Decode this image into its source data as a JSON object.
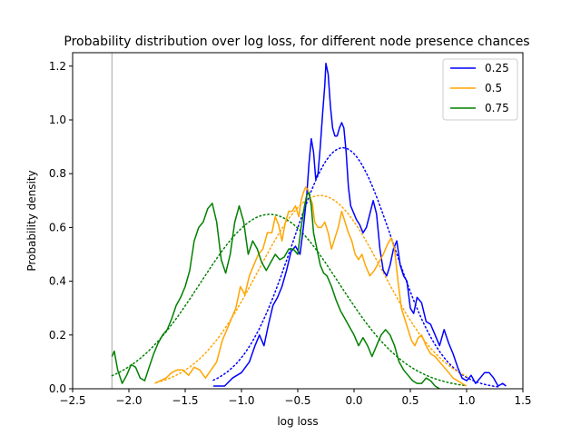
{
  "chart_data": {
    "type": "line",
    "title": "Probability distribution over log loss, for different node presence chances",
    "xlabel": "log loss",
    "ylabel": "Probability density",
    "xlim": [
      -2.5,
      1.5
    ],
    "ylim": [
      0,
      1.25
    ],
    "xticks": [
      "-2.5",
      "-2.0",
      "-1.5",
      "-1.0",
      "-0.5",
      "0.0",
      "0.5",
      "1.0",
      "1.5"
    ],
    "yticks": [
      "0.0",
      "0.2",
      "0.4",
      "0.6",
      "0.8",
      "1.0",
      "1.2"
    ],
    "grid": false,
    "legend_position": "top-right",
    "vline_x": -2.15,
    "series": [
      {
        "name": "0.25",
        "color": "#0000ff",
        "kde": [
          [
            -1.25,
            0.01
          ],
          [
            -1.15,
            0.01
          ],
          [
            -1.08,
            0.04
          ],
          [
            -1.0,
            0.06
          ],
          [
            -0.93,
            0.1
          ],
          [
            -0.88,
            0.16
          ],
          [
            -0.84,
            0.2
          ],
          [
            -0.8,
            0.16
          ],
          [
            -0.76,
            0.24
          ],
          [
            -0.72,
            0.31
          ],
          [
            -0.68,
            0.34
          ],
          [
            -0.64,
            0.38
          ],
          [
            -0.6,
            0.44
          ],
          [
            -0.56,
            0.51
          ],
          [
            -0.52,
            0.53
          ],
          [
            -0.48,
            0.5
          ],
          [
            -0.45,
            0.6
          ],
          [
            -0.42,
            0.72
          ],
          [
            -0.4,
            0.84
          ],
          [
            -0.38,
            0.93
          ],
          [
            -0.36,
            0.88
          ],
          [
            -0.34,
            0.78
          ],
          [
            -0.32,
            0.8
          ],
          [
            -0.3,
            0.9
          ],
          [
            -0.28,
            1.02
          ],
          [
            -0.26,
            1.13
          ],
          [
            -0.25,
            1.21
          ],
          [
            -0.23,
            1.17
          ],
          [
            -0.21,
            1.05
          ],
          [
            -0.19,
            0.97
          ],
          [
            -0.17,
            0.94
          ],
          [
            -0.15,
            0.94
          ],
          [
            -0.13,
            0.97
          ],
          [
            -0.11,
            0.99
          ],
          [
            -0.09,
            0.97
          ],
          [
            -0.07,
            0.88
          ],
          [
            -0.05,
            0.75
          ],
          [
            -0.03,
            0.68
          ],
          [
            -0.01,
            0.66
          ],
          [
            0.02,
            0.63
          ],
          [
            0.05,
            0.61
          ],
          [
            0.08,
            0.58
          ],
          [
            0.11,
            0.6
          ],
          [
            0.14,
            0.65
          ],
          [
            0.17,
            0.7
          ],
          [
            0.2,
            0.65
          ],
          [
            0.23,
            0.52
          ],
          [
            0.26,
            0.44
          ],
          [
            0.29,
            0.42
          ],
          [
            0.32,
            0.46
          ],
          [
            0.35,
            0.52
          ],
          [
            0.38,
            0.55
          ],
          [
            0.41,
            0.46
          ],
          [
            0.44,
            0.42
          ],
          [
            0.47,
            0.4
          ],
          [
            0.5,
            0.3
          ],
          [
            0.53,
            0.28
          ],
          [
            0.56,
            0.34
          ],
          [
            0.6,
            0.32
          ],
          [
            0.64,
            0.25
          ],
          [
            0.68,
            0.24
          ],
          [
            0.72,
            0.2
          ],
          [
            0.76,
            0.16
          ],
          [
            0.8,
            0.22
          ],
          [
            0.84,
            0.17
          ],
          [
            0.88,
            0.13
          ],
          [
            0.92,
            0.08
          ],
          [
            0.96,
            0.04
          ],
          [
            1.0,
            0.03
          ],
          [
            1.04,
            0.05
          ],
          [
            1.08,
            0.02
          ],
          [
            1.12,
            0.04
          ],
          [
            1.16,
            0.06
          ],
          [
            1.2,
            0.06
          ],
          [
            1.24,
            0.04
          ],
          [
            1.28,
            0.01
          ],
          [
            1.32,
            0.02
          ],
          [
            1.35,
            0.01
          ]
        ],
        "normal": {
          "mean": -0.1,
          "std": 0.445,
          "from": -1.25,
          "to": 1.3
        }
      },
      {
        "name": "0.5",
        "color": "#ffa500",
        "kde": [
          [
            -1.77,
            0.02
          ],
          [
            -1.72,
            0.03
          ],
          [
            -1.67,
            0.04
          ],
          [
            -1.62,
            0.06
          ],
          [
            -1.57,
            0.07
          ],
          [
            -1.52,
            0.07
          ],
          [
            -1.47,
            0.05
          ],
          [
            -1.42,
            0.08
          ],
          [
            -1.37,
            0.07
          ],
          [
            -1.32,
            0.04
          ],
          [
            -1.27,
            0.07
          ],
          [
            -1.22,
            0.1
          ],
          [
            -1.17,
            0.18
          ],
          [
            -1.13,
            0.22
          ],
          [
            -1.09,
            0.26
          ],
          [
            -1.05,
            0.3
          ],
          [
            -1.01,
            0.38
          ],
          [
            -0.97,
            0.35
          ],
          [
            -0.93,
            0.42
          ],
          [
            -0.89,
            0.46
          ],
          [
            -0.85,
            0.5
          ],
          [
            -0.81,
            0.52
          ],
          [
            -0.77,
            0.58
          ],
          [
            -0.73,
            0.58
          ],
          [
            -0.7,
            0.64
          ],
          [
            -0.67,
            0.61
          ],
          [
            -0.64,
            0.55
          ],
          [
            -0.61,
            0.62
          ],
          [
            -0.58,
            0.66
          ],
          [
            -0.55,
            0.66
          ],
          [
            -0.52,
            0.68
          ],
          [
            -0.49,
            0.64
          ],
          [
            -0.47,
            0.7
          ],
          [
            -0.45,
            0.73
          ],
          [
            -0.43,
            0.75
          ],
          [
            -0.41,
            0.74
          ],
          [
            -0.39,
            0.71
          ],
          [
            -0.37,
            0.69
          ],
          [
            -0.35,
            0.62
          ],
          [
            -0.32,
            0.6
          ],
          [
            -0.29,
            0.6
          ],
          [
            -0.26,
            0.62
          ],
          [
            -0.23,
            0.58
          ],
          [
            -0.2,
            0.52
          ],
          [
            -0.17,
            0.56
          ],
          [
            -0.14,
            0.6
          ],
          [
            -0.11,
            0.66
          ],
          [
            -0.08,
            0.62
          ],
          [
            -0.05,
            0.58
          ],
          [
            -0.02,
            0.55
          ],
          [
            0.01,
            0.5
          ],
          [
            0.04,
            0.48
          ],
          [
            0.07,
            0.5
          ],
          [
            0.1,
            0.46
          ],
          [
            0.14,
            0.42
          ],
          [
            0.18,
            0.44
          ],
          [
            0.22,
            0.47
          ],
          [
            0.26,
            0.5
          ],
          [
            0.3,
            0.54
          ],
          [
            0.33,
            0.56
          ],
          [
            0.36,
            0.52
          ],
          [
            0.39,
            0.4
          ],
          [
            0.42,
            0.3
          ],
          [
            0.45,
            0.26
          ],
          [
            0.48,
            0.22
          ],
          [
            0.51,
            0.18
          ],
          [
            0.54,
            0.16
          ],
          [
            0.57,
            0.19
          ],
          [
            0.6,
            0.2
          ],
          [
            0.64,
            0.16
          ],
          [
            0.68,
            0.13
          ],
          [
            0.72,
            0.12
          ],
          [
            0.76,
            0.1
          ],
          [
            0.8,
            0.08
          ],
          [
            0.84,
            0.06
          ],
          [
            0.88,
            0.04
          ],
          [
            0.92,
            0.03
          ],
          [
            0.96,
            0.02
          ],
          [
            1.0,
            0.01
          ]
        ],
        "normal": {
          "mean": -0.3,
          "std": 0.555,
          "from": -1.75,
          "to": 1.0
        }
      },
      {
        "name": "0.75",
        "color": "#008000",
        "kde": [
          [
            -2.15,
            0.12
          ],
          [
            -2.13,
            0.14
          ],
          [
            -2.1,
            0.07
          ],
          [
            -2.06,
            0.02
          ],
          [
            -2.02,
            0.05
          ],
          [
            -1.98,
            0.09
          ],
          [
            -1.94,
            0.08
          ],
          [
            -1.9,
            0.04
          ],
          [
            -1.86,
            0.03
          ],
          [
            -1.82,
            0.08
          ],
          [
            -1.78,
            0.13
          ],
          [
            -1.74,
            0.17
          ],
          [
            -1.7,
            0.2
          ],
          [
            -1.66,
            0.22
          ],
          [
            -1.62,
            0.26
          ],
          [
            -1.58,
            0.31
          ],
          [
            -1.54,
            0.34
          ],
          [
            -1.5,
            0.38
          ],
          [
            -1.46,
            0.44
          ],
          [
            -1.42,
            0.55
          ],
          [
            -1.38,
            0.6
          ],
          [
            -1.34,
            0.62
          ],
          [
            -1.3,
            0.67
          ],
          [
            -1.26,
            0.69
          ],
          [
            -1.22,
            0.62
          ],
          [
            -1.18,
            0.48
          ],
          [
            -1.14,
            0.43
          ],
          [
            -1.1,
            0.5
          ],
          [
            -1.06,
            0.62
          ],
          [
            -1.02,
            0.68
          ],
          [
            -0.98,
            0.62
          ],
          [
            -0.94,
            0.5
          ],
          [
            -0.9,
            0.55
          ],
          [
            -0.86,
            0.52
          ],
          [
            -0.82,
            0.47
          ],
          [
            -0.78,
            0.44
          ],
          [
            -0.74,
            0.47
          ],
          [
            -0.7,
            0.5
          ],
          [
            -0.66,
            0.48
          ],
          [
            -0.62,
            0.49
          ],
          [
            -0.58,
            0.52
          ],
          [
            -0.54,
            0.52
          ],
          [
            -0.5,
            0.5
          ],
          [
            -0.47,
            0.6
          ],
          [
            -0.44,
            0.68
          ],
          [
            -0.42,
            0.72
          ],
          [
            -0.4,
            0.73
          ],
          [
            -0.38,
            0.68
          ],
          [
            -0.36,
            0.58
          ],
          [
            -0.33,
            0.52
          ],
          [
            -0.3,
            0.46
          ],
          [
            -0.27,
            0.43
          ],
          [
            -0.24,
            0.42
          ],
          [
            -0.2,
            0.38
          ],
          [
            -0.16,
            0.33
          ],
          [
            -0.12,
            0.29
          ],
          [
            -0.08,
            0.26
          ],
          [
            -0.04,
            0.23
          ],
          [
            0.0,
            0.2
          ],
          [
            0.04,
            0.16
          ],
          [
            0.08,
            0.19
          ],
          [
            0.12,
            0.16
          ],
          [
            0.16,
            0.12
          ],
          [
            0.2,
            0.16
          ],
          [
            0.24,
            0.2
          ],
          [
            0.28,
            0.22
          ],
          [
            0.32,
            0.2
          ],
          [
            0.36,
            0.16
          ],
          [
            0.4,
            0.1
          ],
          [
            0.44,
            0.07
          ],
          [
            0.48,
            0.05
          ],
          [
            0.52,
            0.03
          ],
          [
            0.56,
            0.02
          ],
          [
            0.6,
            0.02
          ],
          [
            0.64,
            0.04
          ],
          [
            0.68,
            0.03
          ],
          [
            0.72,
            0.01
          ],
          [
            0.76,
            0.0
          ]
        ],
        "normal": {
          "mean": -0.75,
          "std": 0.615,
          "from": -2.15,
          "to": 1.0
        }
      }
    ]
  }
}
